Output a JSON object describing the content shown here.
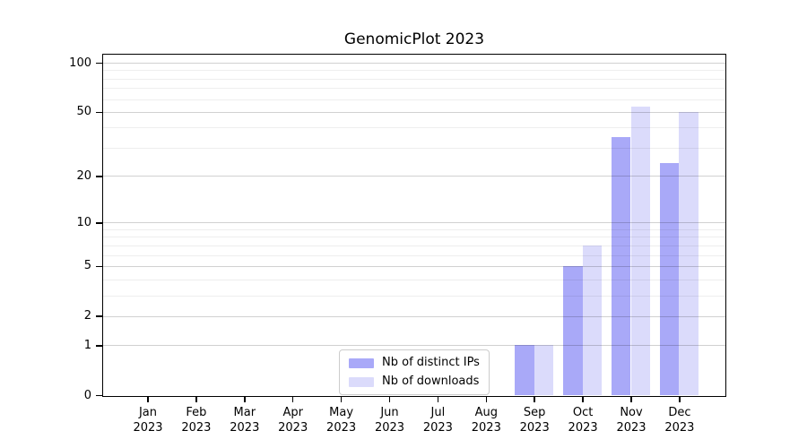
{
  "title": "GenomicPlot 2023",
  "style": {
    "background": "#ffffff",
    "axis_color": "#000000",
    "grid_major": "rgba(0,0,0,0.18)",
    "grid_minor": "rgba(0,0,0,0.065)",
    "legend_border": "#cccccc"
  },
  "chart_data": {
    "type": "bar",
    "title": "GenomicPlot 2023",
    "xlabel": "",
    "ylabel": "",
    "yscale": "log1p",
    "ylim": [
      0,
      112
    ],
    "grid": "horizontal major+minor, drawn above bars",
    "legend_position": "bottom-center",
    "categories": [
      "Jan 2023",
      "Feb 2023",
      "Mar 2023",
      "Apr 2023",
      "May 2023",
      "Jun 2023",
      "Jul 2023",
      "Aug 2023",
      "Sep 2023",
      "Oct 2023",
      "Nov 2023",
      "Dec 2023"
    ],
    "y_major_ticks": [
      0,
      1,
      2,
      5,
      10,
      20,
      50,
      100
    ],
    "y_minor_gridlines": [
      3,
      4,
      6,
      7,
      8,
      9,
      30,
      40,
      60,
      70,
      80,
      90
    ],
    "series": [
      {
        "name": "Nb of distinct IPs",
        "color": "#a9a9f8",
        "values": [
          0,
          0,
          0,
          0,
          0,
          0,
          0,
          0,
          1,
          5,
          35,
          24
        ]
      },
      {
        "name": "Nb of downloads",
        "color": "#dbdbfb",
        "values": [
          0,
          0,
          0,
          0,
          0,
          0,
          0,
          0,
          1,
          7,
          54,
          50
        ]
      }
    ]
  }
}
